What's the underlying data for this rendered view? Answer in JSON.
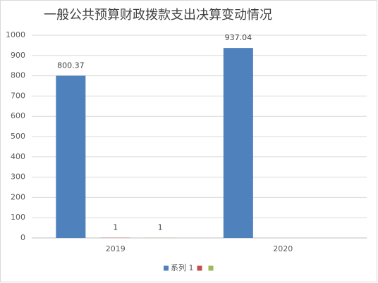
{
  "chart_data": {
    "type": "bar",
    "title": "一般公共预算财政拨款支出决算变动情况",
    "categories": [
      "2019",
      "2020"
    ],
    "series": [
      {
        "name": "系列 1",
        "color": "#4f81bd",
        "values": [
          800.37,
          937.04
        ]
      },
      {
        "color": "#c0504d",
        "values": [
          1,
          null
        ]
      },
      {
        "color": "#9bbb59",
        "values": [
          1,
          null
        ]
      }
    ],
    "ylim": [
      0,
      1000
    ],
    "yticks": [
      0,
      100,
      200,
      300,
      400,
      500,
      600,
      700,
      800,
      900,
      1000
    ],
    "grid": true,
    "legend": "bottom"
  }
}
